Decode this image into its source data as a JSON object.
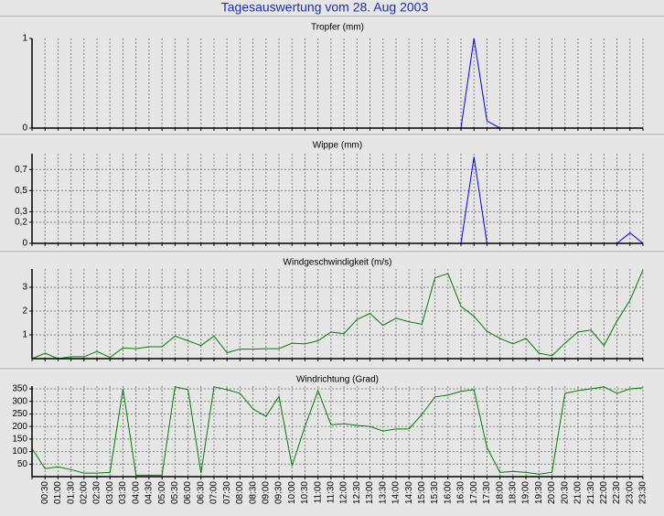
{
  "title": "Tagesauswertung vom 28. Aug 2003",
  "chart_data": [
    {
      "type": "line",
      "title": "Tropfer (mm)",
      "color": "#0000ff",
      "ylim": [
        0,
        1
      ],
      "yticks": [
        0,
        1
      ],
      "grid": true,
      "values": [
        0,
        0,
        0,
        0,
        0,
        0,
        0,
        0,
        0,
        0,
        0,
        0,
        0,
        0,
        0,
        0,
        0,
        0,
        0,
        0,
        0,
        0,
        0,
        0,
        0,
        0,
        0,
        0,
        0,
        0,
        0,
        0,
        0,
        0,
        1,
        0.08,
        0,
        0,
        0,
        0,
        0,
        0,
        0,
        0,
        0,
        0,
        0,
        0
      ]
    },
    {
      "type": "line",
      "title": "Wippe (mm)",
      "color": "#0000ff",
      "ylim": [
        0,
        0.85
      ],
      "yticks": [
        0,
        {
          "value": 0.2,
          "label": "0,2"
        },
        {
          "value": 0.3,
          "label": "0,3"
        },
        {
          "value": 0.5,
          "label": "0,5"
        },
        {
          "value": 0.7,
          "label": "0,7"
        }
      ],
      "grid": true,
      "values": [
        0,
        0,
        0,
        0,
        0,
        0,
        0,
        0,
        0,
        0,
        0,
        0,
        0,
        0,
        0,
        0,
        0,
        0,
        0,
        0,
        0,
        0,
        0,
        0,
        0,
        0,
        0,
        0,
        0,
        0,
        0,
        0,
        0,
        0,
        0.82,
        0,
        0,
        0,
        0,
        0,
        0,
        0,
        0,
        0,
        0,
        0,
        0.1,
        0
      ]
    },
    {
      "type": "line",
      "title": "Windgeschwindigkeit (m/s)",
      "color": "#008000",
      "ylim": [
        0,
        3.77
      ],
      "yticks": [
        1,
        2,
        3
      ],
      "grid": true,
      "values": [
        0,
        0.23,
        0,
        0.08,
        0.08,
        0.3,
        0.05,
        0.45,
        0.42,
        0.5,
        0.5,
        0.95,
        0.75,
        0.55,
        0.95,
        0.25,
        0.4,
        0.4,
        0.42,
        0.42,
        0.65,
        0.62,
        0.75,
        1.12,
        1.05,
        1.65,
        1.9,
        1.4,
        1.7,
        1.55,
        1.45,
        3.4,
        3.58,
        2.2,
        1.78,
        1.15,
        0.85,
        0.62,
        0.85,
        0.23,
        0.12,
        0.65,
        1.12,
        1.2,
        0.55,
        1.58,
        2.45,
        3.73
      ]
    },
    {
      "type": "line",
      "title": "Windrichtung (Grad)",
      "color": "#008000",
      "ylim": [
        0,
        361
      ],
      "yticks": [
        50,
        100,
        150,
        200,
        250,
        300,
        350
      ],
      "grid": true,
      "values": [
        112,
        32,
        39,
        28,
        14,
        14,
        17,
        350,
        6,
        6,
        6,
        358,
        347,
        14,
        358,
        347,
        332,
        270,
        240,
        320,
        43,
        200,
        343,
        207,
        211,
        204,
        200,
        182,
        190,
        190,
        248,
        318,
        325,
        340,
        347,
        116,
        17,
        21,
        17,
        10,
        17,
        332,
        343,
        350,
        358,
        332,
        350,
        354
      ],
      "categories": [
        null,
        "00:30",
        "01:00",
        "01:30",
        "02:00",
        "02:30",
        "03:00",
        "03:30",
        "04:00",
        "04:30",
        "05:00",
        "05:30",
        "06:00",
        "06:30",
        "07:00",
        "07:30",
        "08:00",
        "08:30",
        "09:00",
        "09:30",
        "10:00",
        "10:30",
        "11:00",
        "11:30",
        "12:00",
        "12:30",
        "13:00",
        "13:30",
        "14:00",
        "14:30",
        "15:00",
        "15:30",
        "16:00",
        "16:30",
        "17:00",
        "17:30",
        "18:00",
        "18:30",
        "19:00",
        "19:30",
        "20:00",
        "20:30",
        "21:00",
        "21:30",
        "22:00",
        "22:30",
        "23:00",
        "23:30"
      ]
    }
  ]
}
